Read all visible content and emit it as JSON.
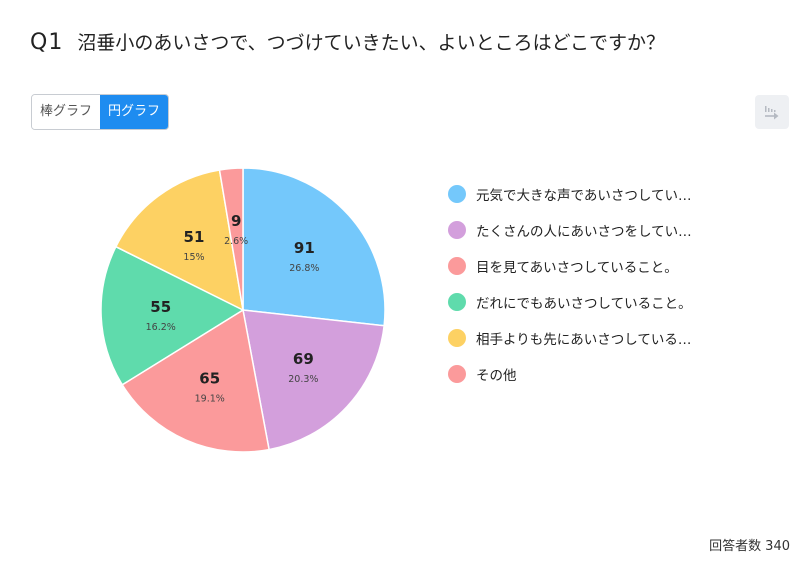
{
  "question": {
    "number": "Q1",
    "text": "沼垂小のあいさつで、つづけていきたい、よいところはどこですか？"
  },
  "tabs": [
    {
      "label": "棒グラフ",
      "active": false
    },
    {
      "label": "円グラフ",
      "active": true
    }
  ],
  "export_icon": "export-download-icon",
  "footer": {
    "label": "回答者数",
    "count": "340"
  },
  "chart_data": {
    "type": "pie",
    "categories": [
      "元気で大きな声であいさつしてい…",
      "たくさんの人にあいさつをしてい…",
      "目を見てあいさつしていること。",
      "だれにでもあいさつしていること。",
      "相手よりも先にあいさつしている…",
      "その他"
    ],
    "values": [
      91,
      69,
      65,
      55,
      51,
      9
    ],
    "percent_labels": [
      "26.8%",
      "20.3%",
      "19.1%",
      "16.2%",
      "15%",
      "2.6%"
    ],
    "colors": [
      "#74c8fb",
      "#d39fdc",
      "#fb9a9b",
      "#5fdbac",
      "#fdd163",
      "#fb9a9b"
    ],
    "legend_position": "right",
    "start_angle": "12 o'clock",
    "direction": "clockwise"
  }
}
